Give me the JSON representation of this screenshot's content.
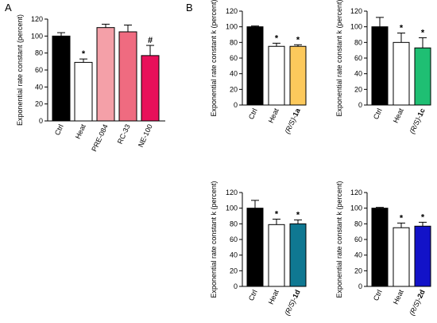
{
  "panels": [
    {
      "label": "A"
    },
    {
      "label": "B"
    }
  ],
  "chart_data": [
    {
      "type": "bar",
      "ylabel": "Exponential rate constant (percent)",
      "ylim": [
        0,
        120
      ],
      "yticks": [
        0,
        20,
        40,
        60,
        80,
        100,
        120
      ],
      "categories": [
        "Ctrl",
        "Heat",
        "PRE-084",
        "RC-33",
        "NE-100"
      ],
      "values": [
        100,
        69,
        110,
        105,
        77
      ],
      "errors": [
        4,
        4,
        4,
        8,
        12
      ],
      "colors": [
        "#000000",
        "#ffffff",
        "#f4a0a8",
        "#ef6b80",
        "#e8105a"
      ],
      "annotations": [
        "",
        "*",
        "",
        "",
        "#"
      ]
    },
    {
      "type": "bar",
      "ylabel": "Exponential rate constant k (percent)",
      "ylim": [
        0,
        120
      ],
      "yticks": [
        0,
        20,
        40,
        60,
        80,
        100,
        120
      ],
      "categories": [
        "Ctrl",
        "Heat",
        "(R/S)-1a"
      ],
      "values": [
        100,
        75,
        75
      ],
      "errors": [
        1,
        4,
        2
      ],
      "colors": [
        "#000000",
        "#ffffff",
        "#fcc95c"
      ],
      "annotations": [
        "",
        "*",
        "*"
      ]
    },
    {
      "type": "bar",
      "ylabel": "Exponential rate constant k (percent)",
      "ylim": [
        0,
        120
      ],
      "yticks": [
        0,
        20,
        40,
        60,
        80,
        100,
        120
      ],
      "categories": [
        "Ctrl",
        "Heat",
        "(R/S)-1c"
      ],
      "values": [
        100,
        80,
        73
      ],
      "errors": [
        12,
        12,
        13
      ],
      "colors": [
        "#000000",
        "#ffffff",
        "#1fbf73"
      ],
      "annotations": [
        "",
        "*",
        "*"
      ]
    },
    {
      "type": "bar",
      "ylabel": "Exponential rate constant k (percent)",
      "ylim": [
        0,
        120
      ],
      "yticks": [
        0,
        20,
        40,
        60,
        80,
        100,
        120
      ],
      "categories": [
        "Ctrl",
        "Heat",
        "(R/S)-1d"
      ],
      "values": [
        100,
        79,
        80
      ],
      "errors": [
        10,
        7,
        5
      ],
      "colors": [
        "#000000",
        "#ffffff",
        "#0f7892"
      ],
      "annotations": [
        "",
        "*",
        "*"
      ]
    },
    {
      "type": "bar",
      "ylabel": "Exponential rate constant k (percent)",
      "ylim": [
        0,
        120
      ],
      "yticks": [
        0,
        20,
        40,
        60,
        80,
        100,
        120
      ],
      "categories": [
        "Ctrl",
        "Heat",
        "(R/S)-2d"
      ],
      "values": [
        100,
        75,
        77
      ],
      "errors": [
        1,
        6,
        5
      ],
      "colors": [
        "#000000",
        "#ffffff",
        "#1212c8"
      ],
      "annotations": [
        "",
        "*",
        "*"
      ]
    }
  ]
}
